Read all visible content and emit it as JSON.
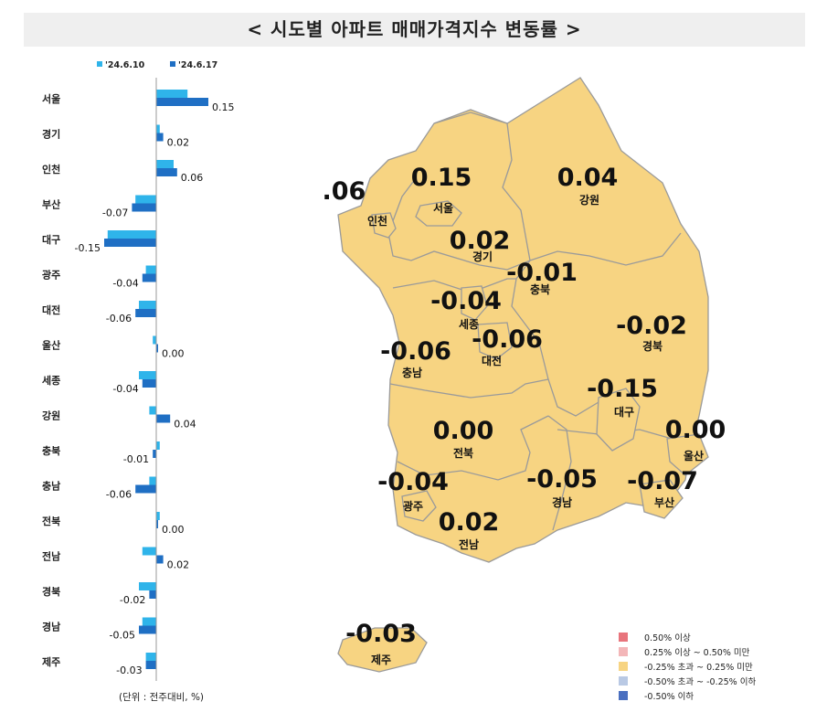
{
  "title": "< 시도별 아파트 매매가격지수 변동률 >",
  "chart_data": {
    "type": "bar",
    "orientation": "horizontal",
    "categories": [
      "서울",
      "경기",
      "인천",
      "부산",
      "대구",
      "광주",
      "대전",
      "울산",
      "세종",
      "강원",
      "충북",
      "충남",
      "전북",
      "전남",
      "경북",
      "경남",
      "제주"
    ],
    "series": [
      {
        "name": "'24.6.10",
        "color": "#2fb4ea",
        "values": [
          0.09,
          0.01,
          0.05,
          -0.06,
          -0.14,
          -0.03,
          -0.05,
          -0.01,
          -0.05,
          -0.02,
          0.01,
          -0.02,
          0.01,
          -0.04,
          -0.05,
          -0.04,
          -0.03
        ]
      },
      {
        "name": "'24.6.17",
        "color": "#1f6fc4",
        "values": [
          0.15,
          0.02,
          0.06,
          -0.07,
          -0.15,
          -0.04,
          -0.06,
          0.0,
          -0.04,
          0.04,
          -0.01,
          -0.06,
          0.0,
          0.02,
          -0.02,
          -0.05,
          -0.03
        ]
      }
    ],
    "data_labels": [
      "0.15",
      "0.02",
      "0.06",
      "-0.07",
      "-0.15",
      "-0.04",
      "-0.06",
      "0.00",
      "-0.04",
      "0.04",
      "-0.01",
      "-0.06",
      "0.00",
      "0.02",
      "-0.02",
      "-0.05",
      "-0.03"
    ],
    "unit_note": "(단위 : 전주대비, %)",
    "legend_position": "top"
  },
  "map": {
    "regions": [
      {
        "id": "seoul",
        "name": "서울",
        "value": "0.15"
      },
      {
        "id": "incheon",
        "name": "인천",
        "value": "0.06"
      },
      {
        "id": "gyeonggi",
        "name": "경기",
        "value": "0.02"
      },
      {
        "id": "gangwon",
        "name": "강원",
        "value": "0.04"
      },
      {
        "id": "chungbuk",
        "name": "충북",
        "value": "-0.01"
      },
      {
        "id": "sejong",
        "name": "세종",
        "value": "-0.04"
      },
      {
        "id": "daejeon",
        "name": "대전",
        "value": "-0.06"
      },
      {
        "id": "chungnam",
        "name": "충남",
        "value": "-0.06"
      },
      {
        "id": "gyeongbuk",
        "name": "경북",
        "value": "-0.02"
      },
      {
        "id": "daegu",
        "name": "대구",
        "value": "-0.15"
      },
      {
        "id": "ulsan",
        "name": "울산",
        "value": "0.00"
      },
      {
        "id": "jeonbuk",
        "name": "전북",
        "value": "0.00"
      },
      {
        "id": "gwangju",
        "name": "광주",
        "value": "-0.04"
      },
      {
        "id": "jeonnam",
        "name": "전남",
        "value": "0.02"
      },
      {
        "id": "gyeongnam",
        "name": "경남",
        "value": "-0.05"
      },
      {
        "id": "busan",
        "name": "부산",
        "value": "-0.07"
      },
      {
        "id": "jeju",
        "name": "제주",
        "value": "-0.03"
      }
    ],
    "fill_color": "#f7d482",
    "border_color": "#9a9a9a",
    "legend": [
      {
        "label": "0.50% 이상",
        "color": "#e8747c"
      },
      {
        "label": "0.25% 이상 ~ 0.50% 미만",
        "color": "#f3b6b8"
      },
      {
        "label": "-0.25% 초과 ~ 0.25% 미만",
        "color": "#f7d482"
      },
      {
        "label": "-0.50% 초과 ~ -0.25% 이하",
        "color": "#b9c9e4"
      },
      {
        "label": "-0.50% 이하",
        "color": "#4a6fc0"
      }
    ]
  }
}
